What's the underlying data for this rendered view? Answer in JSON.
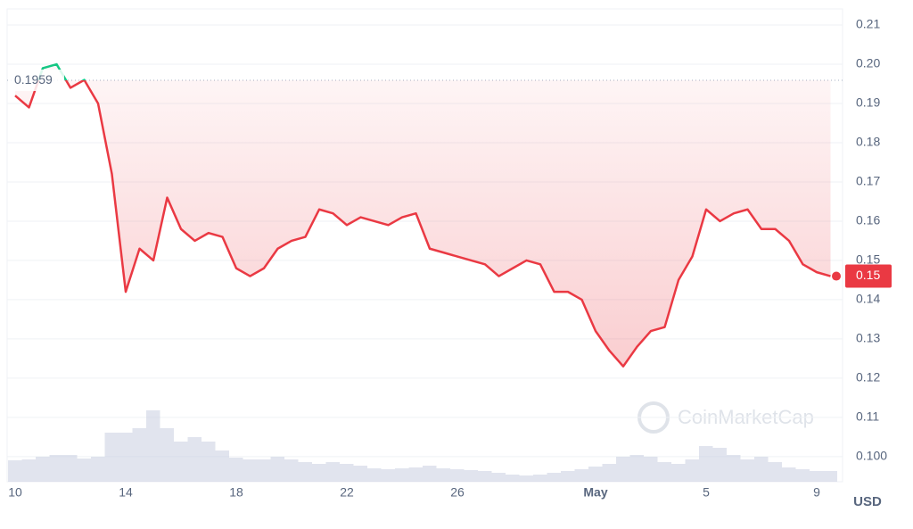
{
  "chart_data": {
    "type": "line",
    "categories": [
      "10",
      null,
      null,
      null,
      null,
      null,
      null,
      null,
      "14",
      null,
      null,
      null,
      null,
      null,
      null,
      null,
      "18",
      null,
      null,
      null,
      null,
      null,
      null,
      null,
      "22",
      null,
      null,
      null,
      null,
      null,
      null,
      null,
      "26",
      null,
      null,
      null,
      null,
      null,
      null,
      null,
      null,
      null,
      "May",
      null,
      null,
      null,
      null,
      null,
      null,
      null,
      "5",
      null,
      null,
      null,
      null,
      null,
      null,
      null,
      "9",
      null
    ],
    "series": [
      {
        "color": "#ea3943",
        "above_color": "#16c784",
        "values": [
          0.192,
          0.189,
          0.199,
          0.2,
          0.194,
          0.196,
          0.19,
          0.172,
          0.142,
          0.153,
          0.15,
          0.166,
          0.158,
          0.155,
          0.157,
          0.156,
          0.148,
          0.146,
          0.148,
          0.153,
          0.155,
          0.156,
          0.163,
          0.162,
          0.159,
          0.161,
          0.16,
          0.159,
          0.161,
          0.162,
          0.153,
          0.152,
          0.151,
          0.15,
          0.149,
          0.146,
          0.148,
          0.15,
          0.149,
          0.142,
          0.142,
          0.14,
          0.132,
          0.127,
          0.123,
          0.128,
          0.132,
          0.133,
          0.145,
          0.151,
          0.163,
          0.16,
          0.162,
          0.163,
          0.158,
          0.158,
          0.155,
          0.149,
          0.147,
          0.146
        ]
      }
    ],
    "volume": {
      "color": "#c8cde0",
      "ylim": [
        0,
        100
      ],
      "values": [
        24,
        25,
        28,
        30,
        30,
        26,
        28,
        55,
        55,
        60,
        80,
        60,
        45,
        50,
        45,
        35,
        27,
        25,
        25,
        28,
        25,
        22,
        20,
        22,
        20,
        18,
        15,
        14,
        15,
        16,
        18,
        15,
        14,
        13,
        12,
        10,
        8,
        7,
        8,
        10,
        12,
        14,
        17,
        20,
        28,
        30,
        28,
        22,
        20,
        25,
        40,
        38,
        30,
        25,
        28,
        22,
        16,
        14,
        12,
        12
      ]
    },
    "ylim": [
      0.0936,
      0.2141
    ],
    "yticks": [
      0.21,
      {
        "value": 0.2,
        "label": "0.20"
      },
      0.19,
      0.18,
      0.17,
      0.16,
      0.15,
      0.14,
      0.13,
      0.12,
      0.11,
      {
        "value": 0.1,
        "label": "0.100"
      }
    ],
    "reference_line": {
      "value": 0.1959
    },
    "current_price": {
      "value": 0.146,
      "label": "0.15"
    },
    "y_unit": "USD",
    "watermark": "CoinMarketCap",
    "grid": true
  }
}
